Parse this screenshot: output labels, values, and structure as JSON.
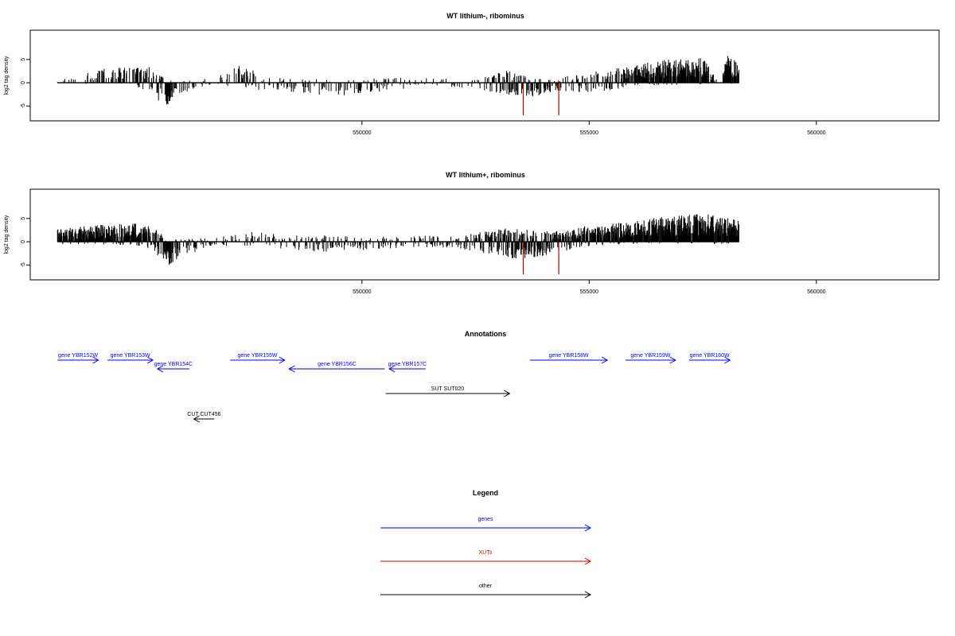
{
  "chart_data": [
    {
      "type": "bar",
      "title": "WT lithium-, ribominus",
      "ylabel": "log2 tag density",
      "xlim": [
        542700,
        562700
      ],
      "ylim": [
        -8.2,
        11.3
      ],
      "x_ticks": [
        550000,
        555000,
        560000
      ],
      "x_tick_labels": [
        "550000",
        "555000",
        "560000"
      ],
      "y_ticks": [
        -5,
        0,
        5
      ],
      "y_tick_labels": [
        "-5",
        "0",
        "5"
      ],
      "baseline_x": [
        543300,
        558300
      ],
      "highlight_bars": [
        {
          "x": 553550,
          "value": -7.0,
          "color": "#d00000"
        },
        {
          "x": 554330,
          "value": -7.0,
          "color": "#d00000"
        }
      ],
      "profile": [
        [
          543300,
          0.3,
          0.3,
          0.15
        ],
        [
          543900,
          1.8,
          0.2,
          0.18
        ],
        [
          544400,
          2.6,
          0.3,
          0.4
        ],
        [
          545000,
          2.8,
          0.3,
          0.55
        ],
        [
          545300,
          3.0,
          2.5,
          0.55
        ],
        [
          545700,
          0.6,
          4.5,
          0.7
        ],
        [
          546050,
          0.4,
          1.8,
          0.35
        ],
        [
          546700,
          0.8,
          0.4,
          0.12
        ],
        [
          547300,
          3.2,
          1.0,
          0.35
        ],
        [
          548000,
          1.0,
          1.5,
          0.3
        ],
        [
          549500,
          0.5,
          2.5,
          0.35
        ],
        [
          550800,
          1.0,
          1.2,
          0.25
        ],
        [
          551500,
          0.8,
          0.6,
          0.15
        ],
        [
          552500,
          0.6,
          1.0,
          0.2
        ],
        [
          553250,
          2.5,
          2.5,
          0.7
        ],
        [
          553800,
          0.8,
          2.5,
          0.7
        ],
        [
          554250,
          1.0,
          1.5,
          0.45
        ],
        [
          554800,
          1.5,
          2.0,
          0.3
        ],
        [
          555400,
          2.5,
          1.5,
          0.55
        ],
        [
          556000,
          3.2,
          0.5,
          0.8
        ],
        [
          556700,
          4.2,
          0.4,
          0.95
        ],
        [
          557500,
          4.5,
          0.3,
          0.95
        ],
        [
          557900,
          0.0,
          0.0,
          0.0
        ],
        [
          558000,
          5.0,
          0.2,
          0.95
        ],
        [
          558700,
          3.5,
          0.3,
          0.75
        ],
        [
          558930,
          2.8,
          1.0,
          0.55
        ],
        [
          558300,
          2.0,
          0.5,
          0.3
        ]
      ]
    },
    {
      "type": "bar",
      "title": "WT lithium+, ribominus",
      "ylabel": "log2 tag density",
      "xlim": [
        542700,
        562700
      ],
      "ylim": [
        -8.2,
        11.3
      ],
      "x_ticks": [
        550000,
        555000,
        560000
      ],
      "x_tick_labels": [
        "550000",
        "555000",
        "560000"
      ],
      "y_ticks": [
        -5,
        0,
        5
      ],
      "y_tick_labels": [
        "-5",
        "0",
        "5"
      ],
      "baseline_x": [
        543300,
        558300
      ],
      "highlight_bars": [
        {
          "x": 553550,
          "value": -7.0,
          "color": "#d00000"
        },
        {
          "x": 554330,
          "value": -7.0,
          "color": "#d00000"
        }
      ],
      "profile": [
        [
          543300,
          2.4,
          0.4,
          0.9
        ],
        [
          544200,
          3.0,
          0.5,
          0.95
        ],
        [
          545000,
          3.3,
          0.6,
          0.95
        ],
        [
          545400,
          3.0,
          1.5,
          0.9
        ],
        [
          545700,
          0.5,
          4.5,
          0.95
        ],
        [
          546100,
          0.6,
          2.5,
          0.45
        ],
        [
          546800,
          1.0,
          0.8,
          0.2
        ],
        [
          547600,
          1.8,
          1.0,
          0.35
        ],
        [
          548300,
          1.2,
          1.5,
          0.4
        ],
        [
          549200,
          1.2,
          1.8,
          0.45
        ],
        [
          550100,
          1.0,
          1.5,
          0.35
        ],
        [
          551000,
          1.2,
          1.2,
          0.4
        ],
        [
          552000,
          1.0,
          1.0,
          0.35
        ],
        [
          553200,
          2.5,
          3.0,
          0.9
        ],
        [
          553800,
          2.0,
          3.0,
          0.9
        ],
        [
          554300,
          2.0,
          2.0,
          0.8
        ],
        [
          555000,
          3.0,
          0.8,
          0.9
        ],
        [
          555800,
          3.5,
          0.4,
          0.95
        ],
        [
          556500,
          4.5,
          0.4,
          1.0
        ],
        [
          557500,
          5.0,
          0.4,
          1.0
        ],
        [
          558000,
          4.5,
          0.4,
          1.0
        ],
        [
          558650,
          4.0,
          0.5,
          0.95
        ],
        [
          559500,
          3.8,
          0.6,
          0.95
        ],
        [
          560300,
          3.2,
          0.8,
          0.9
        ],
        [
          558300,
          2.0,
          0.8,
          0.7
        ]
      ]
    }
  ],
  "annotations": {
    "title": "Annotations",
    "features": [
      {
        "label": "gene YBR152W",
        "start": 543300,
        "end": 544200,
        "row": 0,
        "strand": "+",
        "color": "#0000ee"
      },
      {
        "label": "gene YBR153W",
        "start": 544400,
        "end": 545400,
        "row": 0,
        "strand": "+",
        "color": "#0000ee"
      },
      {
        "label": "gene YBR154C",
        "start": 545500,
        "end": 546200,
        "row": 1,
        "strand": "-",
        "color": "#0000ee"
      },
      {
        "label": "gene YBR155W",
        "start": 547100,
        "end": 548300,
        "row": 0,
        "strand": "+",
        "color": "#0000ee"
      },
      {
        "label": "gene YBR156C",
        "start": 548400,
        "end": 550500,
        "row": 1,
        "strand": "-",
        "color": "#0000ee"
      },
      {
        "label": "gene YBR157C",
        "start": 550600,
        "end": 551400,
        "row": 1,
        "strand": "-",
        "color": "#0000ee"
      },
      {
        "label": "gene YBR158W",
        "start": 553700,
        "end": 555400,
        "row": 0,
        "strand": "+",
        "color": "#0000ee"
      },
      {
        "label": "gene YBR159W",
        "start": 555800,
        "end": 556900,
        "row": 0,
        "strand": "+",
        "color": "#0000ee"
      },
      {
        "label": "gene YBR160W",
        "start": 557200,
        "end": 558100,
        "row": 0,
        "strand": "+",
        "color": "#0000ee"
      },
      {
        "label": "SUT SUT020",
        "start": 550520,
        "end": 553250,
        "row": 2,
        "strand": "+",
        "color": "#000000"
      },
      {
        "label": "CUT CUT456",
        "start": 546300,
        "end": 546750,
        "row": 3,
        "strand": "-",
        "color": "#000000"
      }
    ]
  },
  "legend": {
    "title": "Legend",
    "items": [
      {
        "label": "genes",
        "color": "#0000ee"
      },
      {
        "label": "XUTs",
        "color": "#d00000"
      },
      {
        "label": "other",
        "color": "#000000"
      }
    ]
  }
}
